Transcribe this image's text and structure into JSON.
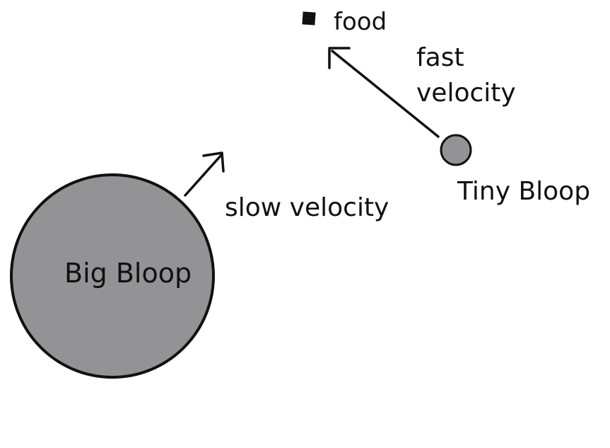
{
  "labels": {
    "food": "food",
    "fast_line1": "fast",
    "fast_line2": "velocity",
    "tiny_bloop": "Tiny Bloop",
    "slow_velocity": "slow velocity",
    "big_bloop": "Big Bloop"
  },
  "colors": {
    "bloop_fill": "#939396",
    "stroke": "#111111",
    "food_fill": "#111111",
    "background": "#ffffff"
  }
}
